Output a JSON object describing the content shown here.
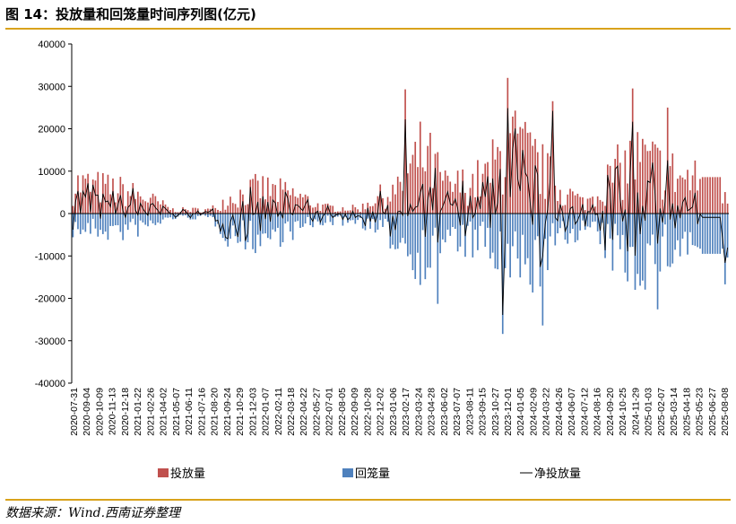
{
  "figure": {
    "title": "图 14：投放量和回笼量时间序列图(亿元)",
    "source": "数据来源：Wind.西南证券整理"
  },
  "colors": {
    "inject": "#c0504d",
    "withdraw": "#4f81bd",
    "net": "#000000",
    "rule": "#d9a21b"
  },
  "chart_data": {
    "type": "bar",
    "title": "",
    "xlabel": "",
    "ylabel": "",
    "ylim": [
      -40000,
      40000
    ],
    "yticks": [
      -40000,
      -30000,
      -20000,
      -10000,
      0,
      10000,
      20000,
      30000,
      40000
    ],
    "grid": false,
    "legend_position": "bottom",
    "x_tick_labels": [
      "2020-07-31",
      "2020-09-04",
      "2020-10-09",
      "2020-11-13",
      "2020-12-18",
      "2021-01-22",
      "2021-02-26",
      "2021-04-02",
      "2021-05-07",
      "2021-06-11",
      "2021-07-16",
      "2021-08-20",
      "2021-09-24",
      "2021-10-29",
      "2021-12-03",
      "2022-01-07",
      "2022-02-11",
      "2022-03-18",
      "2022-04-22",
      "2022-05-27",
      "2022-07-01",
      "2022-08-05",
      "2022-09-09",
      "2022-10-28",
      "2022-12-02",
      "2023-01-06",
      "2023-02-17",
      "2023-03-24",
      "2023-04-28",
      "2023-06-02",
      "2023-07-07",
      "2023-08-11",
      "2023-09-15",
      "2023-10-27",
      "2023-12-01",
      "2024-01-05",
      "2024-02-09",
      "2024-03-22",
      "2024-04-26",
      "2024-06-07",
      "2024-07-12",
      "2024-08-16",
      "2024-09-20",
      "2024-10-25",
      "2024-11-29",
      "2025-01-03",
      "2025-02-07",
      "2025-03-14",
      "2025-04-18",
      "2025-05-23",
      "2025-06-27",
      "2025-08-08"
    ],
    "series": [
      {
        "name": "投放量",
        "type": "bar",
        "values": []
      },
      {
        "name": "回笼量",
        "type": "bar",
        "values": []
      },
      {
        "name": "净投放量",
        "type": "line",
        "values": []
      }
    ]
  }
}
